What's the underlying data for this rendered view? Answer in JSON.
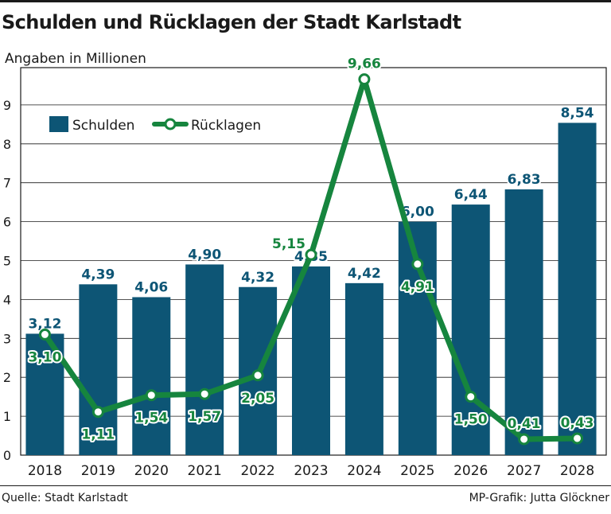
{
  "colors": {
    "bar": "#0d5575",
    "line": "#16853e",
    "bar_label": "#0d5575",
    "line_label": "#16853e",
    "axis": "#1a1a1a"
  },
  "source": "Quelle: Stadt Karlstadt",
  "credit": "MP-Grafik: Jutta Glöckner",
  "chart_data": {
    "type": "bar",
    "title": "Schulden und Rücklagen der Stadt Karlstadt",
    "subtitle": "Angaben in Millionen",
    "xlabel": "",
    "ylabel": "",
    "ylim": [
      0,
      9.6
    ],
    "yticks": [
      "0",
      "1",
      "2",
      "3",
      "4",
      "5",
      "6",
      "7",
      "8",
      "9"
    ],
    "categories": [
      "2018",
      "2019",
      "2020",
      "2021",
      "2022",
      "2023",
      "2024",
      "2025",
      "2026",
      "2027",
      "2028"
    ],
    "legend_position": "top-left",
    "series": [
      {
        "name": "Schulden",
        "kind": "bar",
        "values": [
          3.12,
          4.39,
          4.06,
          4.9,
          4.32,
          4.85,
          4.42,
          6.0,
          6.44,
          6.83,
          8.54
        ],
        "labels": [
          "3,12",
          "4,39",
          "4,06",
          "4,90",
          "4,32",
          "4,85",
          "4,42",
          "6,00",
          "6,44",
          "6,83",
          "8,54"
        ]
      },
      {
        "name": "Rücklagen",
        "kind": "line",
        "values": [
          3.1,
          1.11,
          1.54,
          1.57,
          2.05,
          5.15,
          9.66,
          4.91,
          1.5,
          0.41,
          0.43
        ],
        "labels": [
          "3,10",
          "1,11",
          "1,54",
          "1,57",
          "2,05",
          "5,15",
          "9,66",
          "4,91",
          "1,50",
          "0,41",
          "0,43"
        ]
      }
    ]
  }
}
